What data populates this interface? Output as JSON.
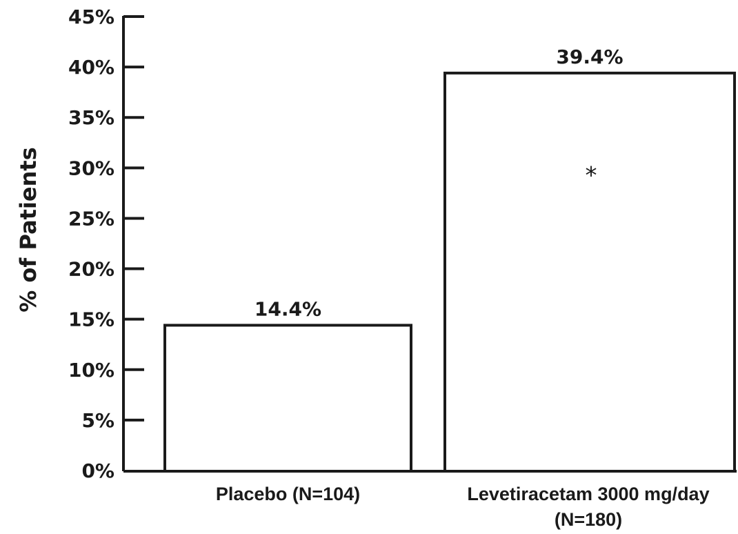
{
  "chart_data": {
    "type": "bar",
    "categories": [
      "Placebo (N=104)",
      "Levetiracetam 3000 mg/day (N=180)"
    ],
    "category_lines": [
      [
        "Placebo (N=104)"
      ],
      [
        "Levetiracetam 3000 mg/day",
        "(N=180)"
      ]
    ],
    "values": [
      14.4,
      39.4
    ],
    "value_labels": [
      "14.4%",
      "39.4%"
    ],
    "ylabel": "% of Patients",
    "xlabel": "",
    "title": "",
    "ylim": [
      0,
      45
    ],
    "yticks": [
      0,
      5,
      10,
      15,
      20,
      25,
      30,
      35,
      40,
      45
    ],
    "ytick_labels": [
      "0%",
      "5%",
      "10%",
      "15%",
      "20%",
      "25%",
      "30%",
      "35%",
      "40%",
      "45%"
    ],
    "annotations": [
      {
        "text": "*",
        "bar_index": 1,
        "y": 30
      }
    ],
    "grid": false,
    "bar_fill": "#ffffff",
    "bar_stroke": "#1a1a1a"
  }
}
